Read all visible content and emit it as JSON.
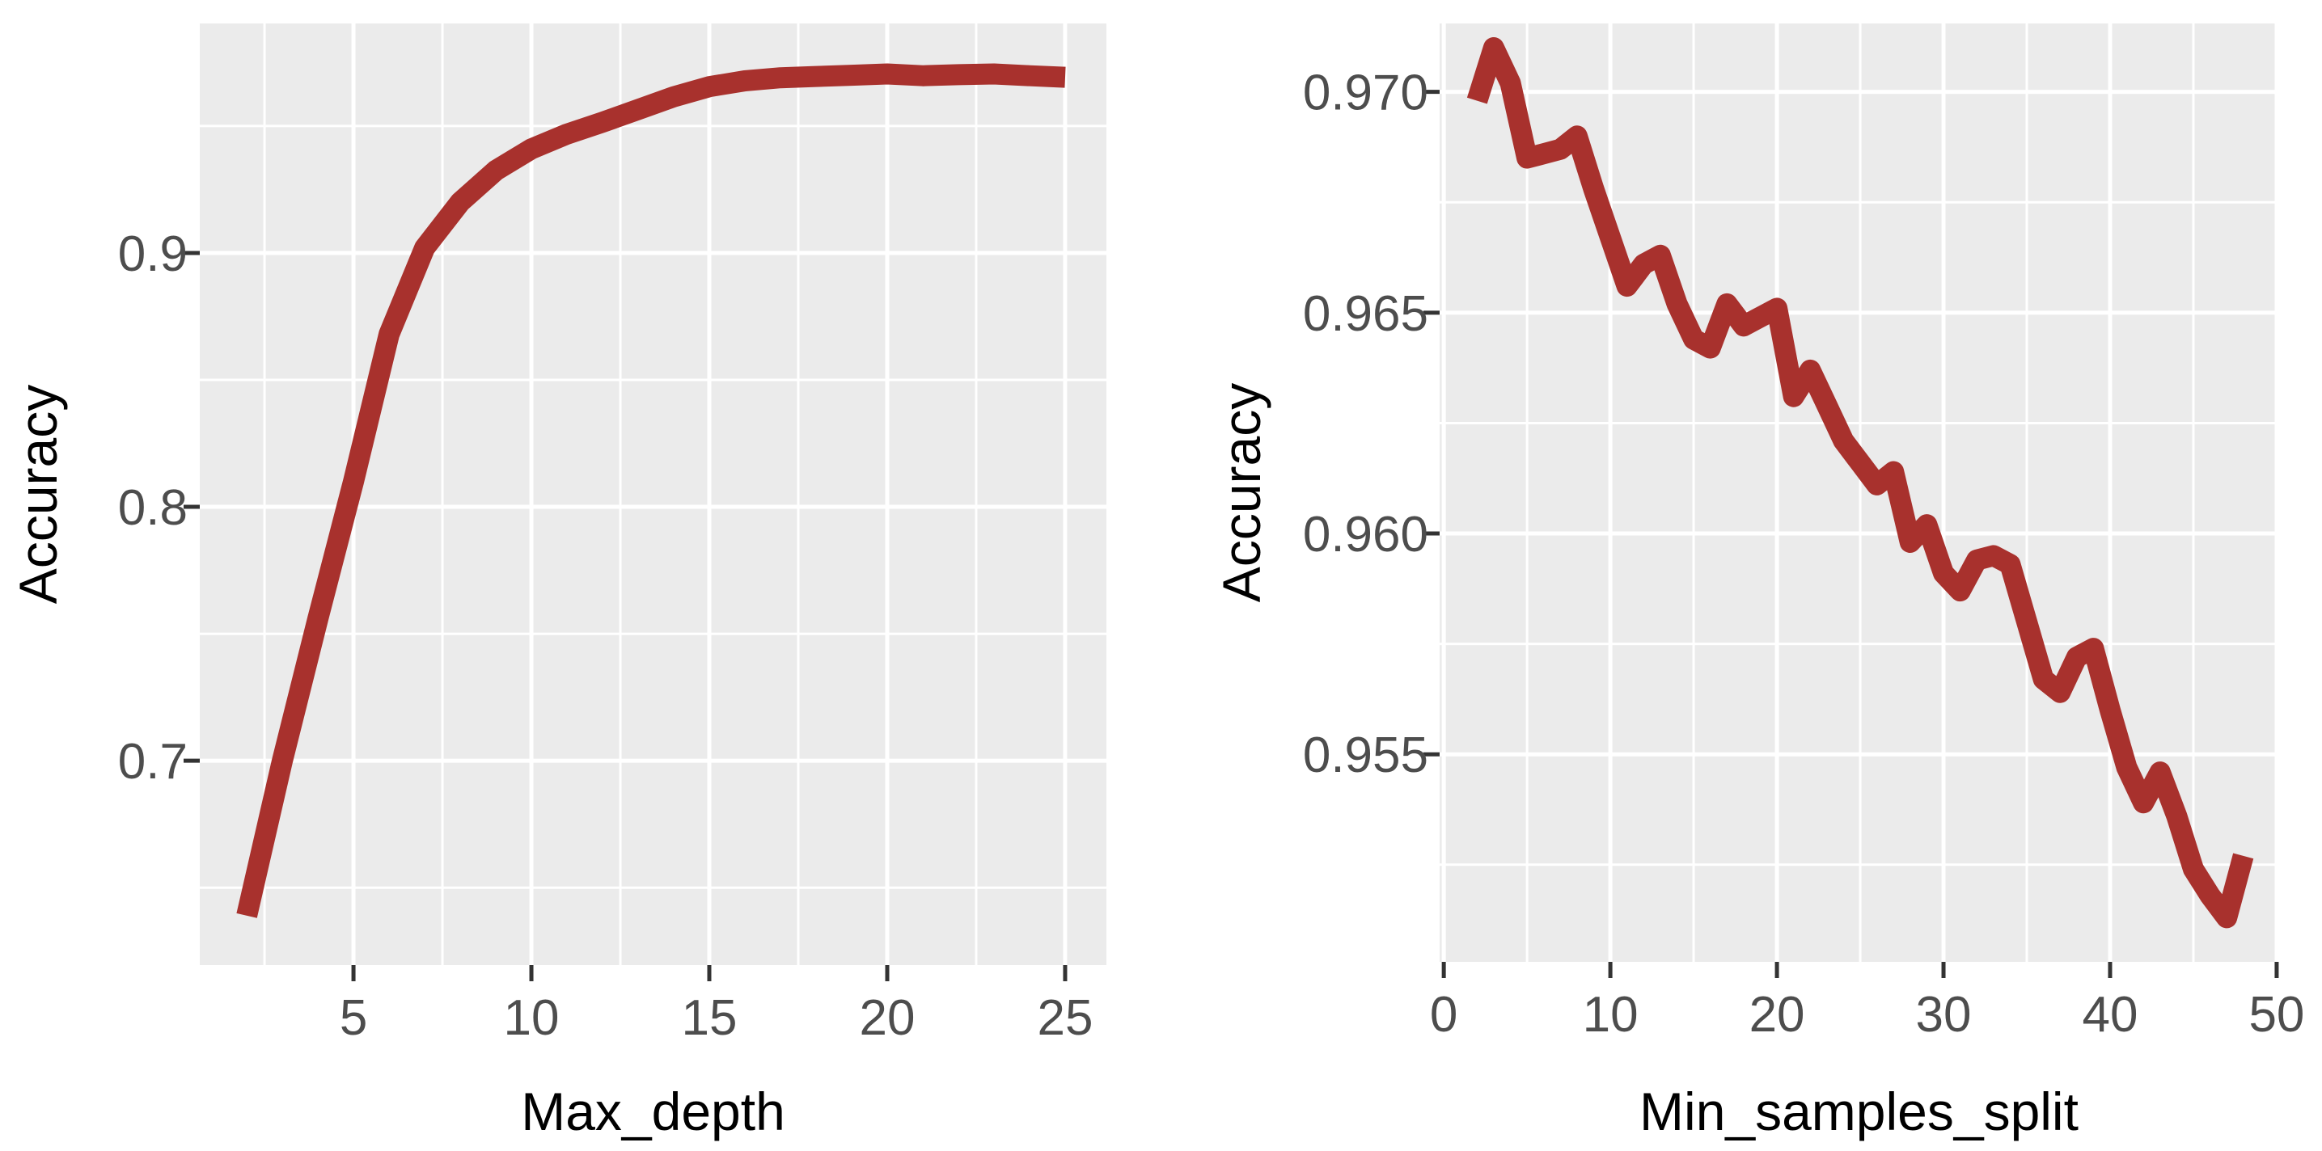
{
  "figure": {
    "background": "#FFFFFF",
    "panel_background": "#EBEBEB",
    "grid_color": "#FFFFFF",
    "tick_mark_color": "#333333",
    "tick_label_color": "#4D4D4D",
    "axis_title_color": "#000000",
    "line_color": "#A8312D"
  },
  "chart_data": [
    {
      "type": "line",
      "title": "",
      "xlabel": "Max_depth",
      "ylabel": "Accuracy",
      "x": [
        2,
        3,
        4,
        5,
        6,
        7,
        8,
        9,
        10,
        11,
        12,
        13,
        14,
        15,
        16,
        17,
        18,
        19,
        20,
        21,
        22,
        23,
        24,
        25
      ],
      "y": [
        0.639,
        0.7,
        0.756,
        0.81,
        0.868,
        0.902,
        0.92,
        0.9325,
        0.941,
        0.9468,
        0.9515,
        0.9565,
        0.9615,
        0.9655,
        0.9678,
        0.969,
        0.9695,
        0.97,
        0.9705,
        0.9698,
        0.9702,
        0.9705,
        0.9698,
        0.9692
      ],
      "xlim": [
        0.68,
        26.16
      ],
      "ylim": [
        0.6195,
        0.9904
      ],
      "x_ticks": [
        5,
        10,
        15,
        20,
        25
      ],
      "x_tick_labels": [
        "5",
        "10",
        "15",
        "20",
        "25"
      ],
      "y_ticks": [
        0.7,
        0.8,
        0.9
      ],
      "y_tick_labels": [
        "0.7",
        "0.8",
        "0.9"
      ],
      "x_minor": [
        2.5,
        7.5,
        12.5,
        17.5,
        22.5
      ],
      "y_minor": [
        0.65,
        0.75,
        0.85,
        0.95
      ],
      "grid": true,
      "legend": null
    },
    {
      "type": "line",
      "title": "",
      "xlabel": "Min_samples_split",
      "ylabel": "Accuracy",
      "x": [
        2,
        3,
        4,
        5,
        6,
        7,
        8,
        9,
        10,
        11,
        12,
        13,
        14,
        15,
        16,
        17,
        18,
        19,
        20,
        21,
        22,
        23,
        24,
        25,
        26,
        27,
        28,
        29,
        30,
        31,
        32,
        33,
        34,
        35,
        36,
        37,
        38,
        39,
        40,
        41,
        42,
        43,
        44,
        45,
        46,
        47,
        48
      ],
      "y": [
        0.9698,
        0.971,
        0.9702,
        0.9685,
        0.9686,
        0.9687,
        0.969,
        0.9678,
        0.9667,
        0.9656,
        0.9661,
        0.9663,
        0.9652,
        0.9644,
        0.9642,
        0.9652,
        0.9647,
        0.9649,
        0.9651,
        0.9631,
        0.9637,
        0.9629,
        0.9621,
        0.9616,
        0.9611,
        0.9614,
        0.9598,
        0.9602,
        0.9591,
        0.9587,
        0.9594,
        0.9595,
        0.9593,
        0.958,
        0.9567,
        0.9564,
        0.9572,
        0.9574,
        0.956,
        0.9547,
        0.9539,
        0.9546,
        0.9536,
        0.9524,
        0.9518,
        0.9513,
        0.9527
      ],
      "xlim": [
        -0.25,
        50.1
      ],
      "ylim": [
        0.9503,
        0.97155
      ],
      "x_ticks": [
        0,
        10,
        20,
        30,
        40,
        50
      ],
      "x_tick_labels": [
        "0",
        "10",
        "20",
        "30",
        "40",
        "50"
      ],
      "y_ticks": [
        0.955,
        0.96,
        0.965,
        0.97
      ],
      "y_tick_labels": [
        "0.955",
        "0.960",
        "0.965",
        "0.970"
      ],
      "x_minor": [
        5,
        15,
        25,
        35,
        45
      ],
      "y_minor": [
        0.9525,
        0.9575,
        0.9625,
        0.9675
      ],
      "grid": true,
      "legend": null
    }
  ]
}
